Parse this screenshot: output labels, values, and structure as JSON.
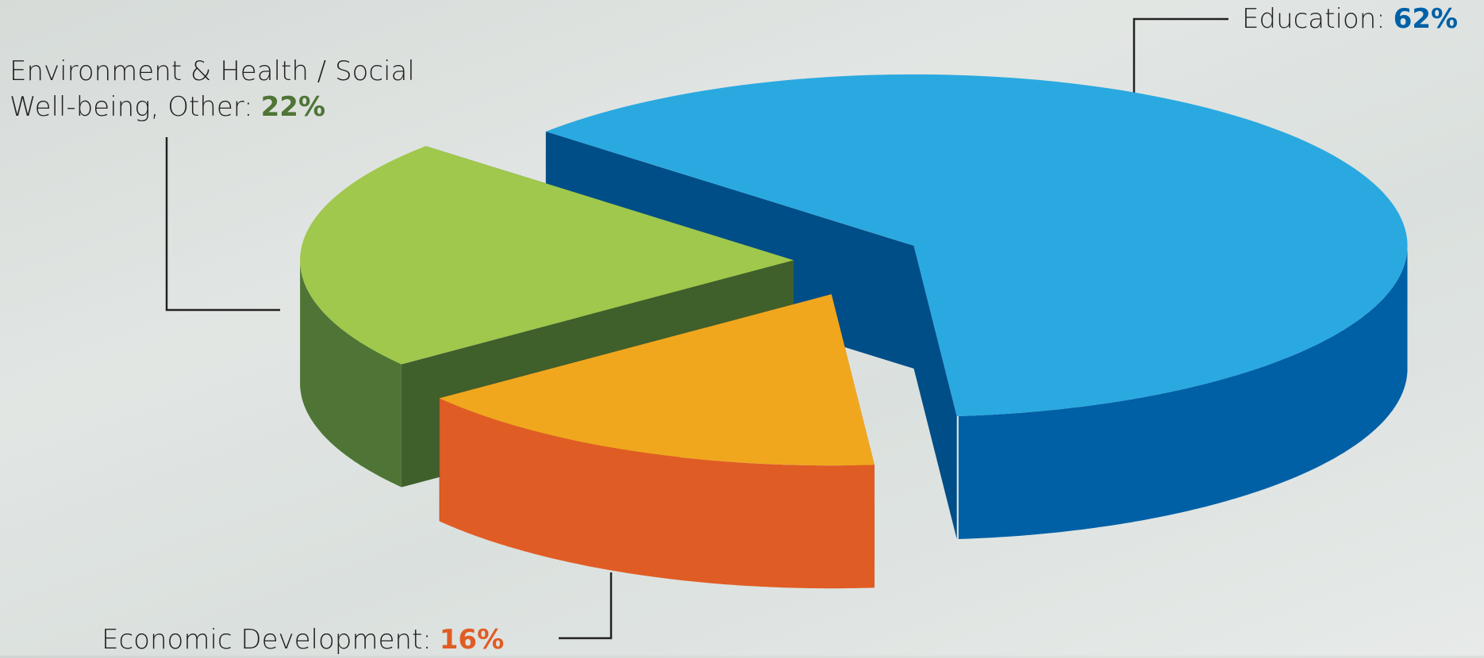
{
  "chart_data": {
    "type": "pie3d",
    "categories": [
      "Education:",
      "Environment & Health / Social Well-being, Other:",
      "Economic Development:"
    ],
    "values": [
      62,
      22,
      16
    ],
    "value_labels": [
      "62%",
      "22%",
      "16%"
    ],
    "colors": [
      "#2aa9e0",
      "#9fc84c",
      "#f0a71e"
    ],
    "side_colors": [
      "#0060a6",
      "#4e7535",
      "#e05c25"
    ]
  }
}
